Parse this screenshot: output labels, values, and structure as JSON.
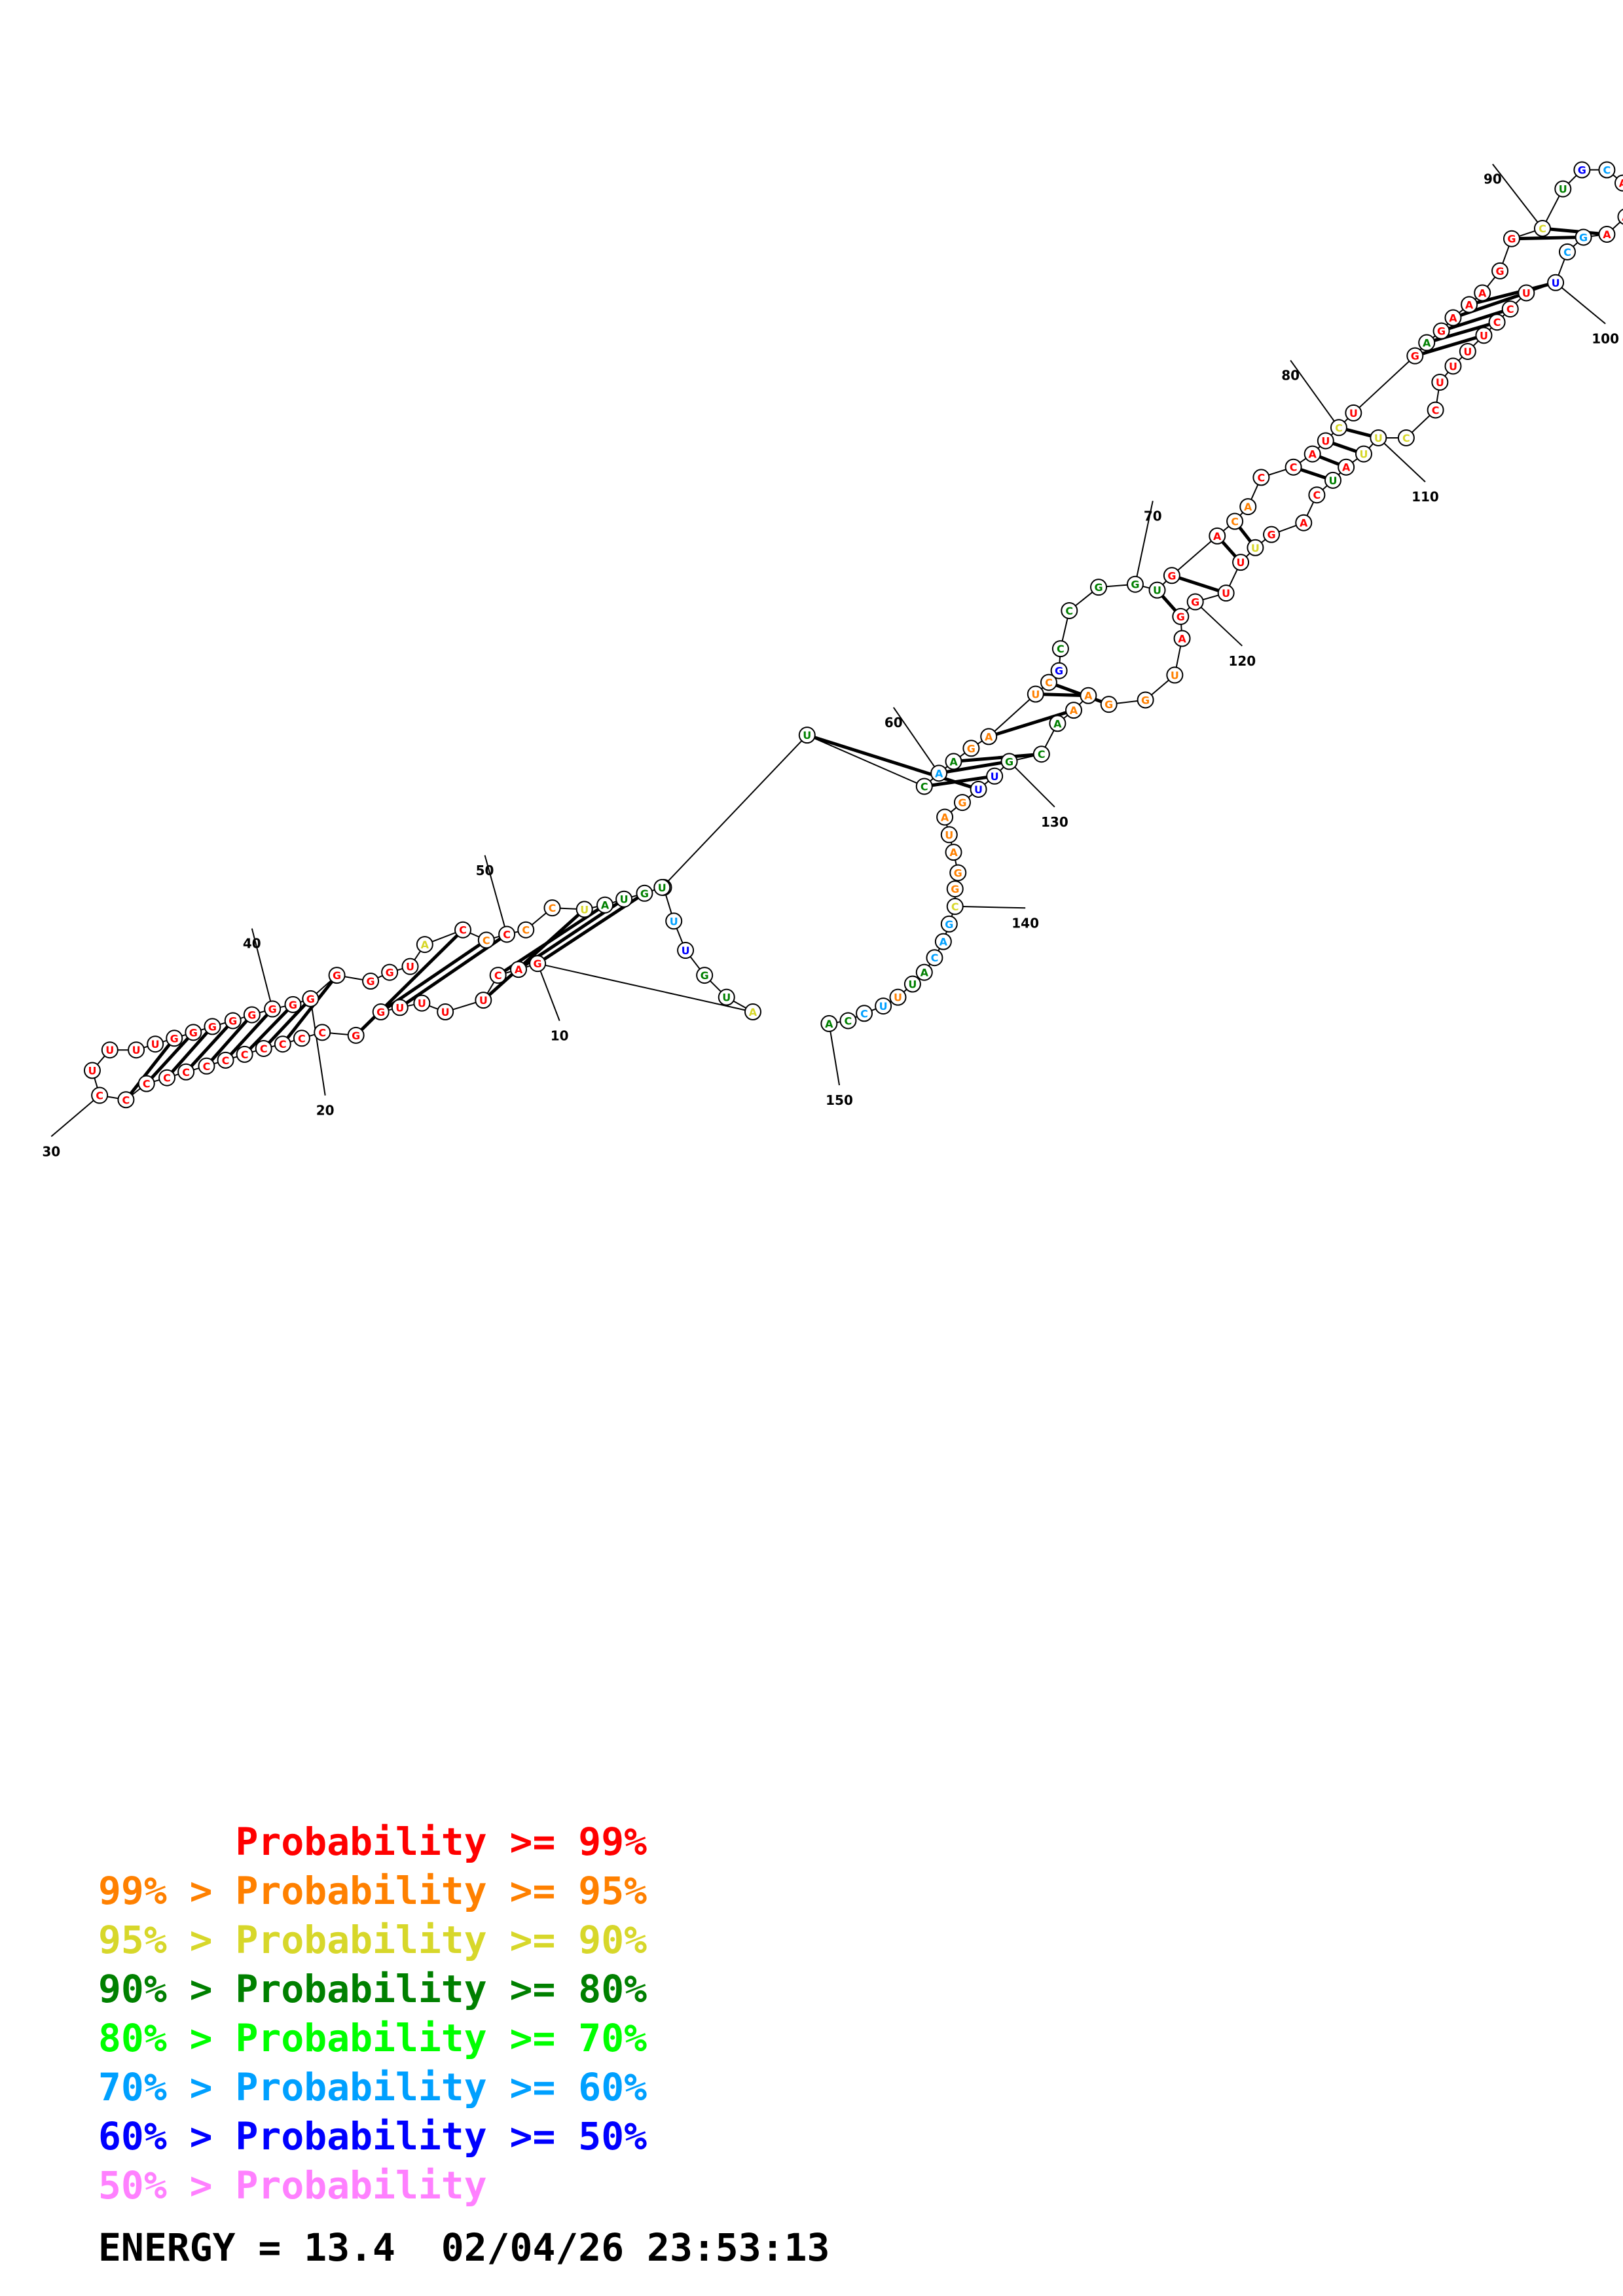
{
  "colors": {
    "p99": "#ff0000",
    "p95": "#ff8000",
    "p90": "#d7d72a",
    "p80": "#008000",
    "p70": "#00ff00",
    "p60": "#00a0ff",
    "p50": "#0000ff",
    "p00": "#ff80ff"
  },
  "structure": {
    "tick_labels": [
      "10",
      "20",
      "30",
      "40",
      "50",
      "60",
      "70",
      "80",
      "90",
      "100",
      "110",
      "120",
      "130",
      "140",
      "150"
    ],
    "nucleotides": [
      {
        "b": "A",
        "p": "p70"
      },
      {
        "b": "U",
        "p": "p60"
      },
      {
        "b": "U",
        "p": "p50"
      },
      {
        "b": "G",
        "p": "p80"
      },
      {
        "b": "U",
        "p": "p80"
      },
      {
        "b": "A",
        "p": "p90"
      },
      {
        "b": "G",
        "p": "p99"
      },
      {
        "b": "A",
        "p": "p99"
      },
      {
        "b": "C",
        "p": "p99"
      },
      {
        "b": "U",
        "p": "p99"
      },
      {
        "b": "U",
        "p": "p99"
      },
      {
        "b": "U",
        "p": "p99"
      },
      {
        "b": "U",
        "p": "p99"
      },
      {
        "b": "G",
        "p": "p99"
      },
      {
        "b": "G",
        "p": "p99"
      },
      {
        "b": "C",
        "p": "p99"
      },
      {
        "b": "C",
        "p": "p99"
      },
      {
        "b": "C",
        "p": "p99"
      },
      {
        "b": "C",
        "p": "p99"
      },
      {
        "b": "C",
        "p": "p99"
      },
      {
        "b": "C",
        "p": "p99"
      },
      {
        "b": "C",
        "p": "p99"
      },
      {
        "b": "C",
        "p": "p99"
      },
      {
        "b": "C",
        "p": "p99"
      },
      {
        "b": "C",
        "p": "p99"
      },
      {
        "b": "C",
        "p": "p99"
      },
      {
        "b": "C",
        "p": "p99"
      },
      {
        "b": "U",
        "p": "p99"
      },
      {
        "b": "U",
        "p": "p99"
      },
      {
        "b": "U",
        "p": "p99"
      },
      {
        "b": "U",
        "p": "p99"
      },
      {
        "b": "G",
        "p": "p99"
      },
      {
        "b": "G",
        "p": "p99"
      },
      {
        "b": "G",
        "p": "p99"
      },
      {
        "b": "G",
        "p": "p99"
      },
      {
        "b": "G",
        "p": "p99"
      },
      {
        "b": "G",
        "p": "p99"
      },
      {
        "b": "G",
        "p": "p99"
      },
      {
        "b": "G",
        "p": "p99"
      },
      {
        "b": "G",
        "p": "p99"
      },
      {
        "b": "G",
        "p": "p99"
      },
      {
        "b": "G",
        "p": "p99"
      },
      {
        "b": "U",
        "p": "p99"
      },
      {
        "b": "A",
        "p": "p90"
      },
      {
        "b": "C",
        "p": "p99"
      },
      {
        "b": "C",
        "p": "p95"
      },
      {
        "b": "C",
        "p": "p99"
      },
      {
        "b": "C",
        "p": "p95"
      },
      {
        "b": "C",
        "p": "p95"
      },
      {
        "b": "U",
        "p": "p90"
      },
      {
        "b": "A",
        "p": "p80"
      },
      {
        "b": "U",
        "p": "p80"
      },
      {
        "b": "G",
        "p": "p80"
      },
      {
        "b": "U",
        "p": "p80"
      },
      {
        "b": "U",
        "p": "p80"
      },
      {
        "b": "C",
        "p": "p80"
      },
      {
        "b": "A",
        "p": "p60"
      },
      {
        "b": "A",
        "p": "p80"
      },
      {
        "b": "G",
        "p": "p95"
      },
      {
        "b": "A",
        "p": "p95"
      },
      {
        "b": "U",
        "p": "p95"
      },
      {
        "b": "C",
        "p": "p95"
      },
      {
        "b": "G",
        "p": "p50"
      },
      {
        "b": "C",
        "p": "p80"
      },
      {
        "b": "C",
        "p": "p80"
      },
      {
        "b": "G",
        "p": "p80"
      },
      {
        "b": "G",
        "p": "p80"
      },
      {
        "b": "U",
        "p": "p80"
      },
      {
        "b": "G",
        "p": "p99"
      },
      {
        "b": "A",
        "p": "p99"
      },
      {
        "b": "C",
        "p": "p95"
      },
      {
        "b": "A",
        "p": "p95"
      },
      {
        "b": "C",
        "p": "p99"
      },
      {
        "b": "C",
        "p": "p99"
      },
      {
        "b": "A",
        "p": "p99"
      },
      {
        "b": "U",
        "p": "p99"
      },
      {
        "b": "C",
        "p": "p90"
      },
      {
        "b": "U",
        "p": "p99"
      },
      {
        "b": "G",
        "p": "p99"
      },
      {
        "b": "A",
        "p": "p80"
      },
      {
        "b": "G",
        "p": "p99"
      },
      {
        "b": "A",
        "p": "p99"
      },
      {
        "b": "A",
        "p": "p99"
      },
      {
        "b": "A",
        "p": "p99"
      },
      {
        "b": "G",
        "p": "p99"
      },
      {
        "b": "G",
        "p": "p99"
      },
      {
        "b": "C",
        "p": "p90"
      },
      {
        "b": "U",
        "p": "p80"
      },
      {
        "b": "G",
        "p": "p50"
      },
      {
        "b": "C",
        "p": "p60"
      },
      {
        "b": "A",
        "p": "p99"
      },
      {
        "b": "A",
        "p": "p99"
      },
      {
        "b": "A",
        "p": "p99"
      },
      {
        "b": "G",
        "p": "p60"
      },
      {
        "b": "C",
        "p": "p60"
      },
      {
        "b": "U",
        "p": "p50"
      },
      {
        "b": "U",
        "p": "p99"
      },
      {
        "b": "C",
        "p": "p99"
      },
      {
        "b": "C",
        "p": "p99"
      },
      {
        "b": "U",
        "p": "p99"
      },
      {
        "b": "U",
        "p": "p99"
      },
      {
        "b": "U",
        "p": "p99"
      },
      {
        "b": "U",
        "p": "p99"
      },
      {
        "b": "C",
        "p": "p99"
      },
      {
        "b": "C",
        "p": "p90"
      },
      {
        "b": "U",
        "p": "p90"
      },
      {
        "b": "U",
        "p": "p90"
      },
      {
        "b": "A",
        "p": "p99"
      },
      {
        "b": "U",
        "p": "p80"
      },
      {
        "b": "C",
        "p": "p99"
      },
      {
        "b": "A",
        "p": "p99"
      },
      {
        "b": "G",
        "p": "p99"
      },
      {
        "b": "U",
        "p": "p90"
      },
      {
        "b": "U",
        "p": "p99"
      },
      {
        "b": "U",
        "p": "p99"
      },
      {
        "b": "G",
        "p": "p99"
      },
      {
        "b": "G",
        "p": "p99"
      },
      {
        "b": "A",
        "p": "p99"
      },
      {
        "b": "U",
        "p": "p95"
      },
      {
        "b": "G",
        "p": "p95"
      },
      {
        "b": "G",
        "p": "p95"
      },
      {
        "b": "A",
        "p": "p95"
      },
      {
        "b": "A",
        "p": "p95"
      },
      {
        "b": "A",
        "p": "p80"
      },
      {
        "b": "C",
        "p": "p80"
      },
      {
        "b": "G",
        "p": "p80"
      },
      {
        "b": "U",
        "p": "p50"
      },
      {
        "b": "U",
        "p": "p50"
      },
      {
        "b": "G",
        "p": "p95"
      },
      {
        "b": "A",
        "p": "p95"
      },
      {
        "b": "U",
        "p": "p95"
      },
      {
        "b": "A",
        "p": "p95"
      },
      {
        "b": "G",
        "p": "p95"
      },
      {
        "b": "G",
        "p": "p95"
      },
      {
        "b": "C",
        "p": "p90"
      },
      {
        "b": "G",
        "p": "p60"
      },
      {
        "b": "A",
        "p": "p60"
      },
      {
        "b": "C",
        "p": "p60"
      },
      {
        "b": "A",
        "p": "p80"
      },
      {
        "b": "U",
        "p": "p80"
      },
      {
        "b": "U",
        "p": "p95"
      },
      {
        "b": "U",
        "p": "p60"
      },
      {
        "b": "C",
        "p": "p60"
      },
      {
        "b": "C",
        "p": "p80"
      },
      {
        "b": "A",
        "p": "p80"
      },
      {
        "b": "A",
        "p": "p80"
      },
      {
        "b": "A",
        "p": "p99"
      },
      {
        "b": "G",
        "p": "p99"
      }
    ]
  },
  "legend": [
    {
      "prefix": "",
      "text": "Probability >= 99%",
      "color": "#ff0000"
    },
    {
      "prefix": "99% > ",
      "text": "Probability >= 95%",
      "color": "#ff8000"
    },
    {
      "prefix": "95% > ",
      "text": "Probability >= 90%",
      "color": "#d7d72a"
    },
    {
      "prefix": "90% > ",
      "text": "Probability >= 80%",
      "color": "#008000"
    },
    {
      "prefix": "80% > ",
      "text": "Probability >= 70%",
      "color": "#00ff00"
    },
    {
      "prefix": "70% > ",
      "text": "Probability >= 60%",
      "color": "#00a0ff"
    },
    {
      "prefix": "60% > ",
      "text": "Probability >= 50%",
      "color": "#0000ff"
    },
    {
      "prefix": "50% > ",
      "text": "Probability",
      "color": "#ff80ff"
    }
  ],
  "energy": "ENERGY = 13.4  02/04/26 23:53:13"
}
